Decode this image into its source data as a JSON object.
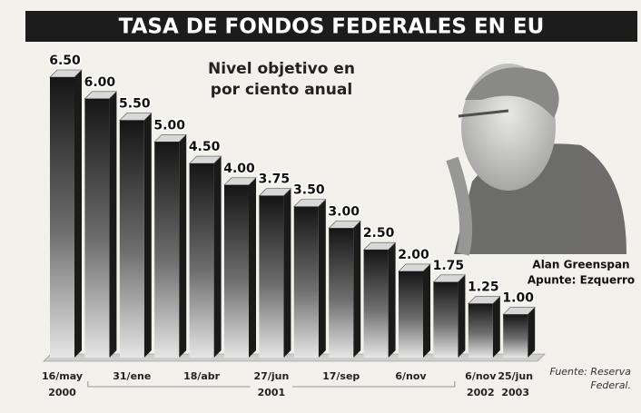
{
  "chart_data": {
    "type": "bar3d",
    "title": "TASA DE FONDOS FEDERALES EN EU",
    "subtitle": [
      "Nivel objetivo en",
      "por ciento anual"
    ],
    "categories": [
      "16/may",
      null,
      "31/ene",
      null,
      "18/abr",
      null,
      "27/jun",
      null,
      "17/sep",
      null,
      "6/nov",
      null,
      "6/nov",
      "25/jun"
    ],
    "years": [
      "2000",
      null,
      null,
      null,
      null,
      null,
      "2001",
      null,
      null,
      null,
      null,
      null,
      "2002",
      "2003"
    ],
    "values": [
      6.5,
      6.0,
      5.5,
      5.0,
      4.5,
      4.0,
      3.75,
      3.5,
      3.0,
      2.5,
      2.0,
      1.75,
      1.25,
      1.0
    ],
    "value_labels": [
      "6.50",
      "6.00",
      "5.50",
      "5.00",
      "4.50",
      "4.00",
      "3.75",
      "3.50",
      "3.00",
      "2.50",
      "2.00",
      "1.75",
      "1.25",
      "1.00"
    ],
    "color": "#1a1a1a",
    "credit": [
      "Alan Greenspan",
      "Apunte: Ezquerro"
    ],
    "source": [
      "Fuente: Reserva",
      "Federal."
    ]
  }
}
